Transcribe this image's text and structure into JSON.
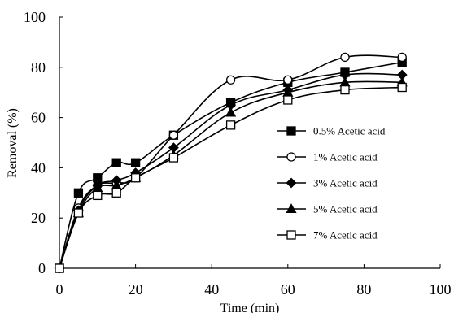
{
  "chart_data": {
    "type": "line",
    "title": "",
    "xlabel": "Time (min)",
    "ylabel": "Removal (%)",
    "xlim": [
      0,
      100
    ],
    "ylim": [
      0,
      100
    ],
    "xticks": [
      "0",
      "20",
      "40",
      "60",
      "80",
      "100"
    ],
    "yticks": [
      "0",
      "20",
      "40",
      "60",
      "80",
      "100"
    ],
    "grid": false,
    "legend_position": "right",
    "x": [
      0,
      5,
      10,
      15,
      20,
      30,
      45,
      60,
      75,
      90
    ],
    "series": [
      {
        "name": "0.5% Acetic acid",
        "marker": "square-filled",
        "values": [
          0,
          30,
          36,
          42,
          42,
          53,
          66,
          74,
          78,
          82
        ]
      },
      {
        "name": "1% Acetic acid",
        "marker": "circle-open",
        "values": [
          0,
          24,
          33,
          34,
          36,
          53,
          75,
          75,
          84,
          84
        ]
      },
      {
        "name": "3% Acetic acid",
        "marker": "diamond-filled",
        "values": [
          0,
          23,
          33,
          35,
          38,
          48,
          65,
          71,
          77,
          77
        ]
      },
      {
        "name": "5% Acetic acid",
        "marker": "triangle-filled",
        "values": [
          0,
          22,
          32,
          33,
          36,
          45,
          62,
          70,
          74,
          74
        ]
      },
      {
        "name": "7% Acetic acid",
        "marker": "square-open",
        "values": [
          0,
          22,
          29,
          30,
          36,
          44,
          57,
          67,
          71,
          72
        ]
      }
    ]
  }
}
